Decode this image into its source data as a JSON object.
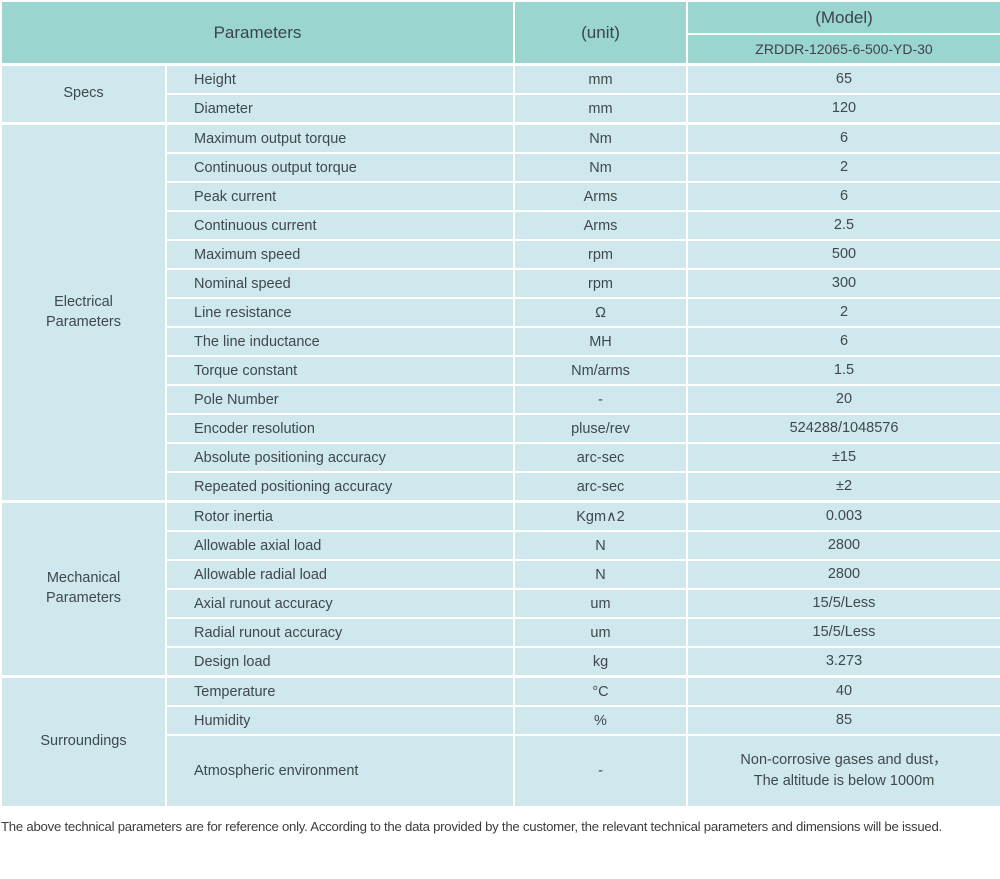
{
  "colors": {
    "header_bg": "#9ad5cf",
    "cell_bg": "#cfe8ed",
    "grid": "#ffffff",
    "text": "#3f484b"
  },
  "table": {
    "header": {
      "parameters_label": "Parameters",
      "unit_label": "(unit)",
      "model_label": "(Model)",
      "model_value": "ZRDDR-12065-6-500-YD-30"
    },
    "sections": [
      {
        "group": "Specs",
        "rows": [
          {
            "param": "Height",
            "unit": "mm",
            "value": "65"
          },
          {
            "param": "Diameter",
            "unit": "mm",
            "value": "120"
          }
        ]
      },
      {
        "group": "Electrical\nParameters",
        "rows": [
          {
            "param": "Maximum output torque",
            "unit": "Nm",
            "value": "6"
          },
          {
            "param": "Continuous output torque",
            "unit": "Nm",
            "value": "2"
          },
          {
            "param": "Peak current",
            "unit": "Arms",
            "value": "6"
          },
          {
            "param": "Continuous current",
            "unit": "Arms",
            "value": "2.5"
          },
          {
            "param": "Maximum speed",
            "unit": "rpm",
            "value": "500"
          },
          {
            "param": "Nominal speed",
            "unit": "rpm",
            "value": "300"
          },
          {
            "param": "Line resistance",
            "unit": "Ω",
            "value": "2"
          },
          {
            "param": "The line inductance",
            "unit": "MH",
            "value": "6"
          },
          {
            "param": "Torque constant",
            "unit": "Nm/arms",
            "value": "1.5"
          },
          {
            "param": "Pole Number",
            "unit": "-",
            "value": "20"
          },
          {
            "param": "Encoder resolution",
            "unit": "pluse/rev",
            "value": "524288/1048576"
          },
          {
            "param": "Absolute positioning accuracy",
            "unit": "arc-sec",
            "value": "±15"
          },
          {
            "param": "Repeated positioning accuracy",
            "unit": "arc-sec",
            "value": "±2"
          }
        ]
      },
      {
        "group": "Mechanical\nParameters",
        "rows": [
          {
            "param": "Rotor inertia",
            "unit": "Kgm∧2",
            "value": "0.003"
          },
          {
            "param": "Allowable axial load",
            "unit": "N",
            "value": "2800"
          },
          {
            "param": "Allowable radial load",
            "unit": "N",
            "value": "2800"
          },
          {
            "param": "Axial runout accuracy",
            "unit": "um",
            "value": "15/5/Less"
          },
          {
            "param": "Radial runout accuracy",
            "unit": "um",
            "value": "15/5/Less"
          },
          {
            "param": "Design load",
            "unit": "kg",
            "value": "3.273"
          }
        ]
      },
      {
        "group": "Surroundings",
        "rows": [
          {
            "param": "Temperature",
            "unit": "°C",
            "value": "40"
          },
          {
            "param": "Humidity",
            "unit": "%",
            "value": "85"
          },
          {
            "param": "Atmospheric environment",
            "unit": "-",
            "value": "Non-corrosive gases and dust，\nThe altitude is below 1000m",
            "tall": true
          }
        ]
      }
    ]
  },
  "footer": {
    "note": "The above technical parameters are for reference only. According to the data provided by the customer, the relevant technical parameters and dimensions will be issued."
  }
}
